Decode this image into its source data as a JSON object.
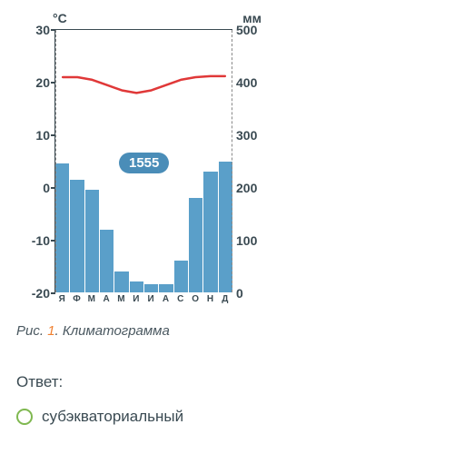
{
  "chart": {
    "type": "climatogram",
    "left_axis": {
      "label": "°C",
      "min": -20,
      "max": 30,
      "step": 10,
      "ticks": [
        {
          "v": 30,
          "pct": 0
        },
        {
          "v": 20,
          "pct": 20
        },
        {
          "v": 10,
          "pct": 40
        },
        {
          "v": 0,
          "pct": 60
        },
        {
          "v": -10,
          "pct": 80
        },
        {
          "v": -20,
          "pct": 100
        }
      ]
    },
    "right_axis": {
      "label": "мм",
      "min": 0,
      "max": 500,
      "step": 100,
      "ticks": [
        {
          "v": 500,
          "pct": 0
        },
        {
          "v": 400,
          "pct": 20
        },
        {
          "v": 300,
          "pct": 40
        },
        {
          "v": 200,
          "pct": 60
        },
        {
          "v": 100,
          "pct": 80
        },
        {
          "v": 0,
          "pct": 100
        }
      ]
    },
    "months": [
      "Я",
      "Ф",
      "М",
      "А",
      "М",
      "И",
      "И",
      "А",
      "С",
      "О",
      "Н",
      "Д"
    ],
    "precip_mm": [
      245,
      215,
      195,
      120,
      40,
      20,
      15,
      15,
      60,
      180,
      230,
      250
    ],
    "temp_c": [
      21,
      21,
      20.5,
      19.5,
      18.5,
      18,
      18.5,
      19.5,
      20.5,
      21,
      21.2,
      21.2
    ],
    "annual_badge": "1555",
    "bar_color": "#5a9fc9",
    "line_color": "#e03838",
    "line_width": 2.5,
    "axis_color": "#3a4a52",
    "background_color": "#ffffff"
  },
  "caption": {
    "prefix": "Рис. ",
    "num": "1",
    "suffix": ". Климатограмма"
  },
  "answer_label": "Ответ:",
  "option": {
    "text": "субэкваториальный",
    "radio_color": "#7fb850"
  }
}
